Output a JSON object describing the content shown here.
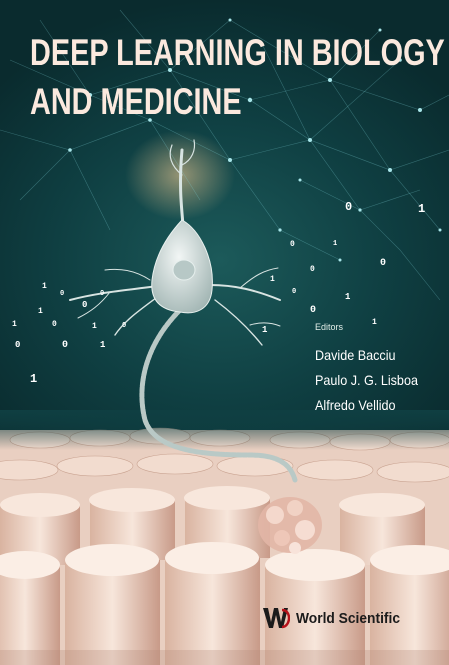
{
  "book": {
    "title_line1": "DEEP LEARNING IN BIOLOGY",
    "title_line2": "AND MEDICINE",
    "editors_label": "Editors",
    "editors": [
      "Davide Bacciu",
      "Paulo J. G. Lisboa",
      "Alfredo Vellido"
    ],
    "publisher": "World Scientific"
  },
  "colors": {
    "background": "#0f3f42",
    "title": "#fbe9de",
    "accent_red": "#b5121b"
  },
  "icons": {
    "publisher_logo": "world-scientific-logo"
  }
}
